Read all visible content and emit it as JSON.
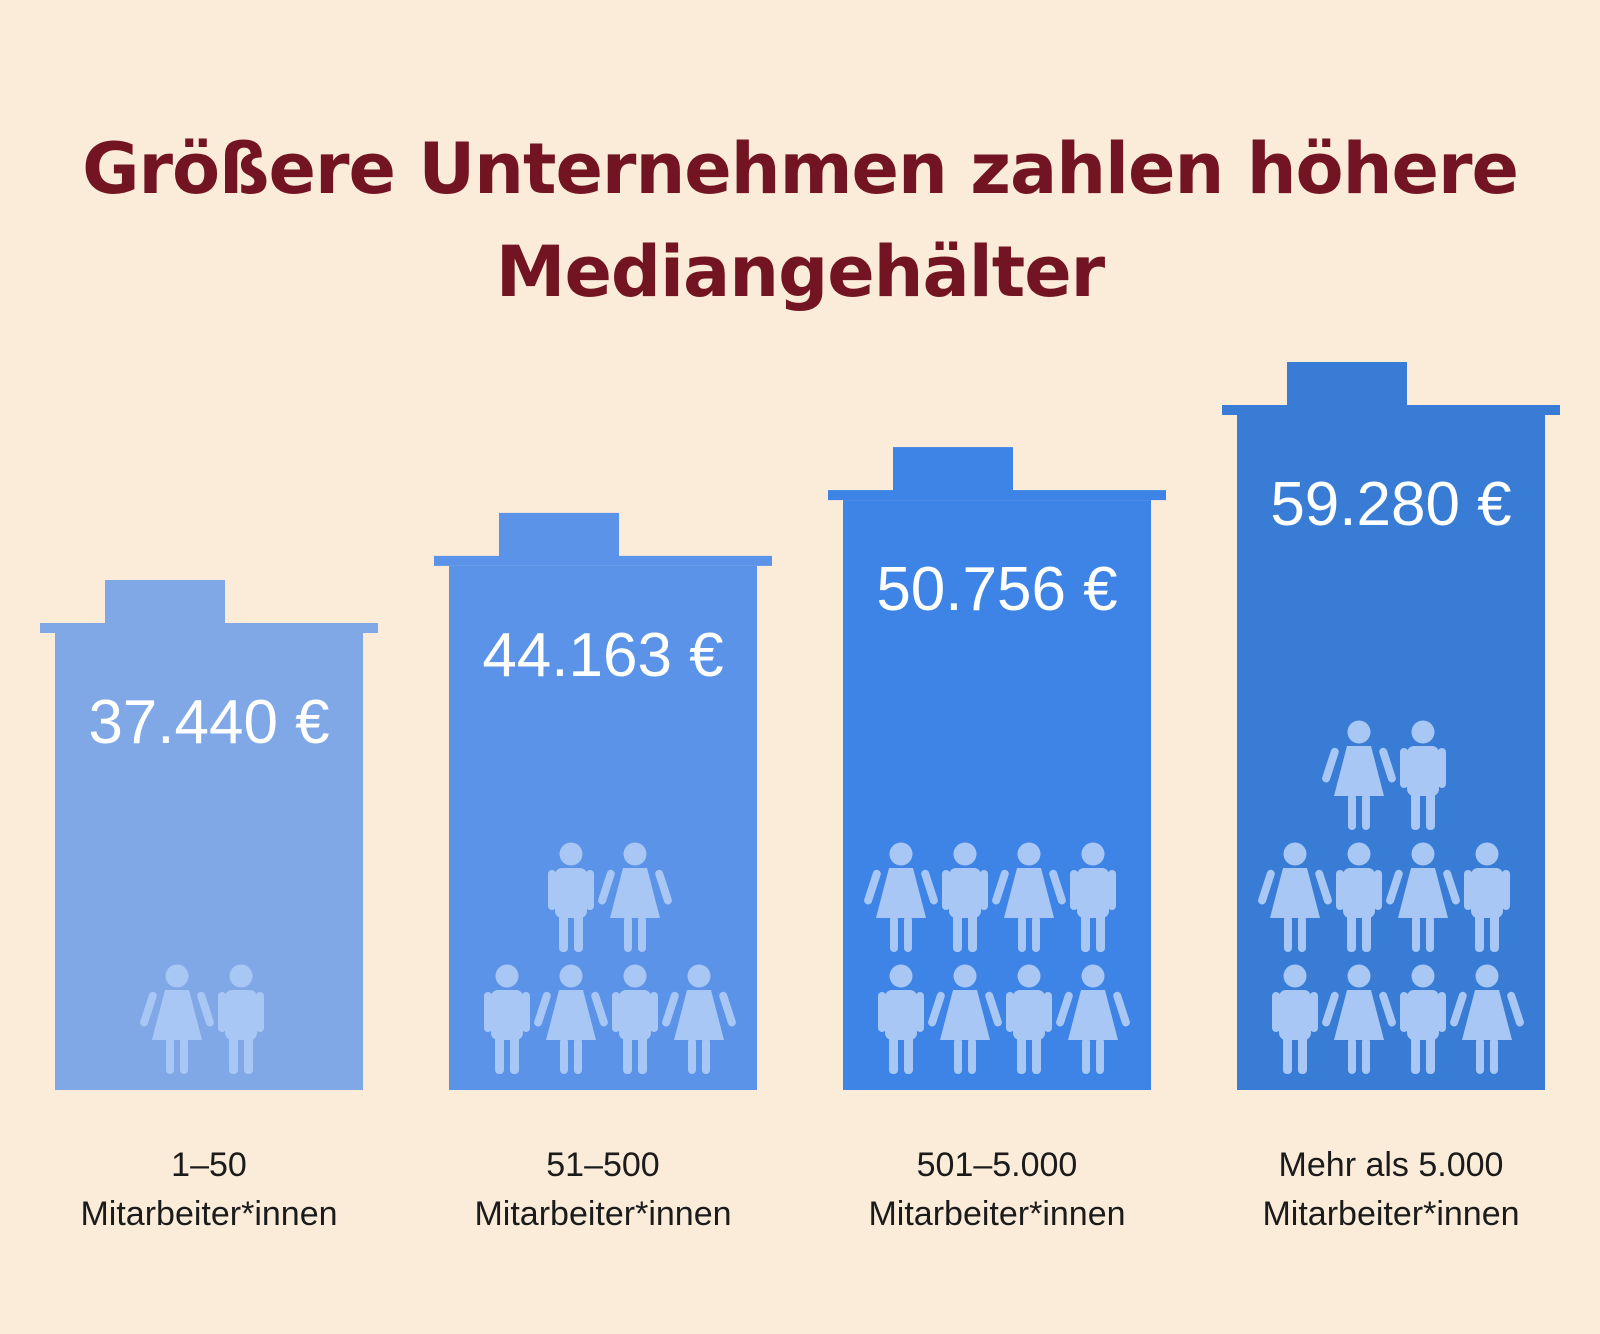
{
  "title": "Größere Unternehmen zahlen höhere Mediangehälter",
  "colors": {
    "background": "#fbebd9",
    "title": "#731423",
    "bars": [
      "#80a7e6",
      "#5b93e8",
      "#3e84e6",
      "#387cd6"
    ],
    "people": "#a9c7f5"
  },
  "chart_data": {
    "type": "bar",
    "title": "Größere Unternehmen zahlen höhere Mediangehälter",
    "categories": [
      [
        "1–50",
        "Mitarbeiter*innen"
      ],
      [
        "51–500",
        "Mitarbeiter*innen"
      ],
      [
        "501–5.000",
        "Mitarbeiter*innen"
      ],
      [
        "Mehr als 5.000",
        "Mitarbeiter*innen"
      ]
    ],
    "values": [
      37440,
      44163,
      50756,
      59280
    ],
    "value_labels": [
      "37.440 €",
      "44.163 €",
      "50.756 €",
      "59.280 €"
    ],
    "people_icons": [
      [
        "female",
        "male"
      ],
      [
        "male",
        "female",
        "male",
        "female",
        "male",
        "female"
      ],
      [
        "female",
        "male",
        "female",
        "male",
        "male",
        "female",
        "male",
        "female"
      ],
      [
        "female",
        "male",
        "female",
        "male",
        "female",
        "male",
        "male",
        "female",
        "male",
        "female"
      ]
    ],
    "grid": false,
    "legend": "none"
  }
}
